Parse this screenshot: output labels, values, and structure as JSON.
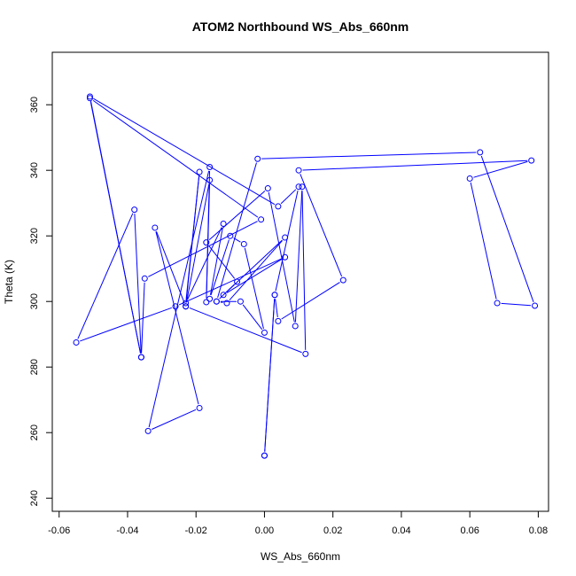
{
  "chart_data": {
    "type": "line",
    "title": "ATOM2 Northbound WS_Abs_660nm",
    "xlabel": "WS_Abs_660nm",
    "ylabel": "Theta (K)",
    "xlim": [
      -0.062,
      0.083
    ],
    "ylim": [
      236,
      376
    ],
    "xticks": [
      -0.06,
      -0.04,
      -0.02,
      0.0,
      0.02,
      0.04,
      0.06,
      0.08
    ],
    "xtick_labels": [
      "-0.06",
      "-0.04",
      "-0.02",
      "0.00",
      "0.02",
      "0.04",
      "0.06",
      "0.08"
    ],
    "yticks": [
      240,
      260,
      280,
      300,
      320,
      340,
      360
    ],
    "ytick_labels": [
      "240",
      "260",
      "280",
      "300",
      "320",
      "340",
      "360"
    ],
    "grid": false,
    "marker": "open-circle",
    "colors": {
      "series": "#0000ff",
      "axis": "#000000",
      "background": "#ffffff"
    },
    "series": [
      {
        "points": [
          [
            0.0,
            253.0
          ],
          [
            0.003,
            302.0
          ],
          [
            0.004,
            294.0
          ],
          [
            0.023,
            306.5
          ],
          [
            0.01,
            340.0
          ],
          [
            0.078,
            343.0
          ],
          [
            0.06,
            337.5
          ],
          [
            0.068,
            299.5
          ],
          [
            0.079,
            298.7
          ],
          [
            0.063,
            345.5
          ],
          [
            -0.002,
            343.5
          ],
          [
            -0.014,
            300.0
          ],
          [
            -0.007,
            300.0
          ],
          [
            0.0,
            290.5
          ],
          [
            -0.006,
            317.5
          ],
          [
            -0.01,
            320.0
          ],
          [
            -0.016,
            300.8
          ],
          [
            -0.012,
            323.7
          ],
          [
            -0.023,
            299.5
          ],
          [
            -0.019,
            339.5
          ],
          [
            -0.023,
            298.5
          ],
          [
            -0.016,
            337.0
          ],
          [
            -0.017,
            299.8
          ],
          [
            -0.016,
            341.0
          ],
          [
            -0.034,
            260.5
          ],
          [
            -0.019,
            267.5
          ],
          [
            -0.032,
            322.5
          ],
          [
            -0.023,
            298.5
          ],
          [
            0.012,
            284.0
          ],
          [
            0.011,
            335.0
          ],
          [
            0.009,
            292.5
          ],
          [
            0.001,
            334.5
          ],
          [
            -0.017,
            318.0
          ],
          [
            -0.008,
            306.0
          ],
          [
            -0.014,
            300.0
          ],
          [
            -0.011,
            299.5
          ],
          [
            0.006,
            319.5
          ],
          [
            -0.012,
            302.0
          ],
          [
            0.006,
            313.5
          ],
          [
            -0.026,
            298.5
          ],
          [
            -0.055,
            287.5
          ],
          [
            -0.038,
            328.0
          ],
          [
            -0.036,
            283.0
          ],
          [
            -0.051,
            362.0
          ],
          [
            -0.001,
            325.0
          ],
          [
            -0.035,
            307.0
          ],
          [
            -0.036,
            283.0
          ],
          [
            -0.051,
            362.5
          ],
          [
            0.004,
            329.0
          ],
          [
            0.01,
            335.0
          ],
          [
            0.003,
            302.0
          ],
          [
            0.0,
            253.0
          ]
        ]
      }
    ]
  }
}
